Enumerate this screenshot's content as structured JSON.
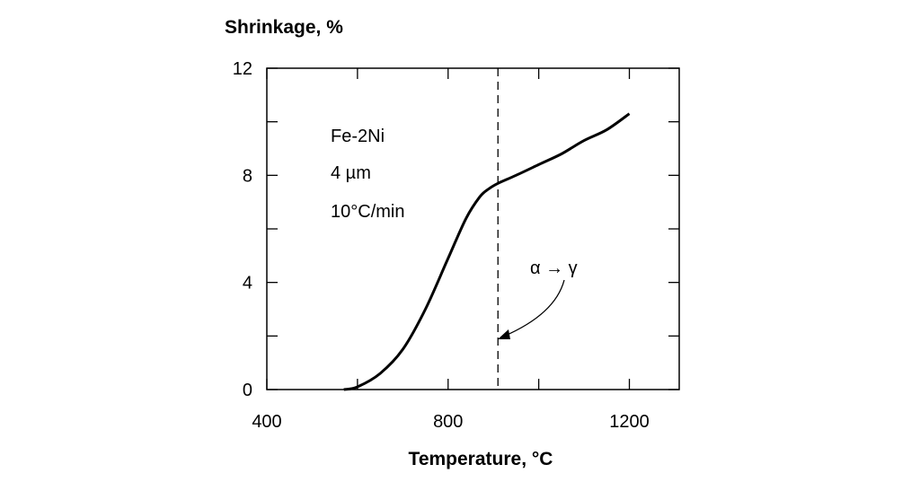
{
  "chart_data": {
    "type": "line",
    "title": "",
    "ylabel": "Shrinkage, %",
    "xlabel": "Temperature, °C",
    "xlim": [
      400,
      1310
    ],
    "ylim": [
      0,
      12
    ],
    "x_ticks": [
      400,
      800,
      1200
    ],
    "y_ticks": [
      0,
      4,
      8,
      12
    ],
    "x_minor_ticks": [
      600,
      1000
    ],
    "y_minor_ticks": [
      2,
      6,
      10
    ],
    "grid": false,
    "annotations": [
      "Fe-2Ni",
      "4 µm",
      "10°C/min",
      "α → γ"
    ],
    "transition_temperature": 910,
    "series": [
      {
        "x": [
          570,
          600,
          650,
          700,
          750,
          800,
          840,
          870,
          890,
          910,
          950,
          1000,
          1050,
          1100,
          1150,
          1200
        ],
        "values": [
          0,
          0.1,
          0.6,
          1.5,
          3.0,
          4.9,
          6.4,
          7.2,
          7.5,
          7.7,
          8.0,
          8.4,
          8.8,
          9.3,
          9.7,
          10.3
        ]
      }
    ]
  }
}
